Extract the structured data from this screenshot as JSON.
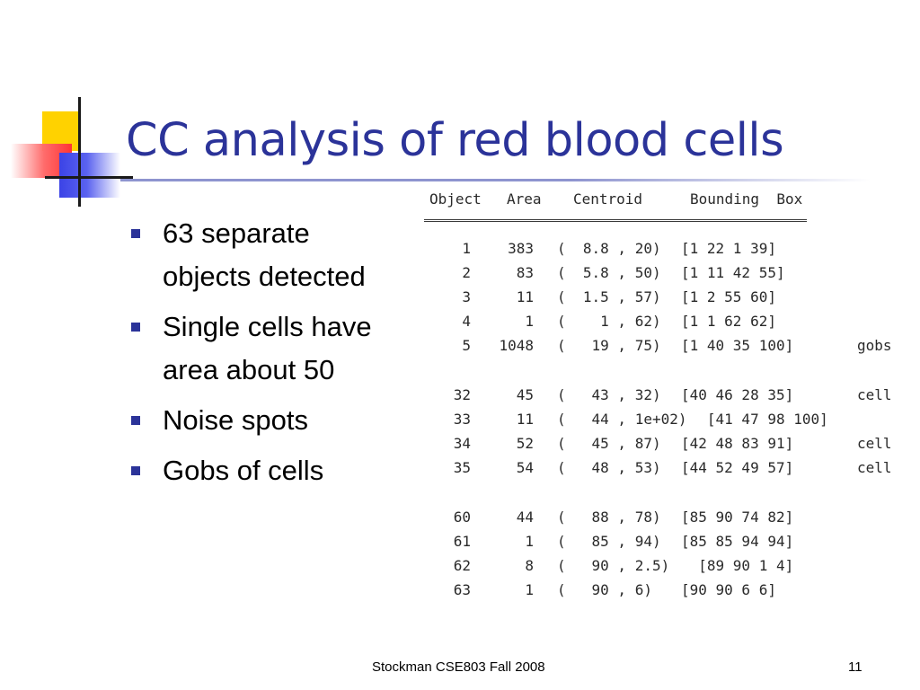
{
  "slide": {
    "title": "CC analysis of red blood cells",
    "bullets": [
      "63 separate objects detected",
      "Single cells have area about 50",
      "Noise spots",
      "Gobs of cells"
    ],
    "footer": "Stockman CSE803 Fall 2008",
    "page_number": "11",
    "accent_color": "#2b3399"
  },
  "printout": {
    "headers": {
      "object": "Object",
      "area": "Area",
      "centroid": "Centroid",
      "bounding_box": "Bounding  Box"
    },
    "rows": [
      {
        "object": "1",
        "area": "383",
        "centroid": "(  8.8 , 20)",
        "box": "[1 22 1 39]",
        "label": ""
      },
      {
        "object": "2",
        "area": "83",
        "centroid": "(  5.8 , 50)",
        "box": "[1 11 42 55]",
        "label": ""
      },
      {
        "object": "3",
        "area": "11",
        "centroid": "(  1.5 , 57)",
        "box": "[1 2 55 60]",
        "label": ""
      },
      {
        "object": "4",
        "area": "1",
        "centroid": "(    1 , 62)",
        "box": "[1 1 62 62]",
        "label": ""
      },
      {
        "object": "5",
        "area": "1048",
        "centroid": "(   19 , 75)",
        "box": "[1 40 35 100]",
        "label": "gobs"
      },
      {
        "object": "32",
        "area": "45",
        "centroid": "(   43 , 32)",
        "box": "[40 46 28 35]",
        "label": "cell"
      },
      {
        "object": "33",
        "area": "11",
        "centroid": "(   44 , 1e+02)",
        "box": "   [41 47 98 100]",
        "label": ""
      },
      {
        "object": "34",
        "area": "52",
        "centroid": "(   45 , 87)",
        "box": "[42 48 83 91]",
        "label": "cell"
      },
      {
        "object": "35",
        "area": "54",
        "centroid": "(   48 , 53)",
        "box": "[44 52 49 57]",
        "label": "cell"
      },
      {
        "object": "60",
        "area": "44",
        "centroid": "(   88 , 78)",
        "box": "[85 90 74 82]",
        "label": ""
      },
      {
        "object": "61",
        "area": "1",
        "centroid": "(   85 , 94)",
        "box": "[85 85 94 94]",
        "label": ""
      },
      {
        "object": "62",
        "area": "8",
        "centroid": "(   90 , 2.5)",
        "box": "  [89 90 1 4]",
        "label": ""
      },
      {
        "object": "63",
        "area": "1",
        "centroid": "(   90 , 6)",
        "box": "[90 90 6 6]",
        "label": ""
      }
    ]
  }
}
